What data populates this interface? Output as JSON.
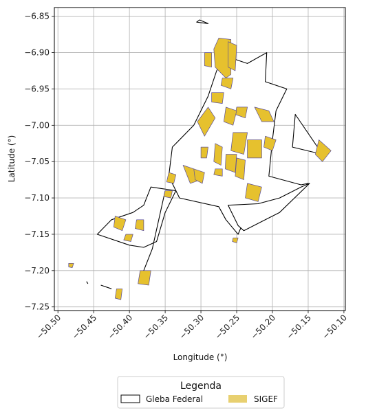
{
  "chart_data": {
    "type": "map",
    "xlabel": "Longitude (°)",
    "ylabel": "Latitude (°)",
    "xlim": [
      -50.505,
      -50.098
    ],
    "ylim": [
      -7.255,
      -6.838
    ],
    "xticks": [
      -50.5,
      -50.45,
      -50.4,
      -50.35,
      -50.3,
      -50.25,
      -50.2,
      -50.15,
      -50.1
    ],
    "xtick_labels": [
      "−50.50",
      "−50.45",
      "−50.40",
      "−50.35",
      "−50.30",
      "−50.25",
      "−50.20",
      "−50.15",
      "−50.10"
    ],
    "yticks": [
      -6.85,
      -6.9,
      -6.95,
      -7.0,
      -7.05,
      -7.1,
      -7.15,
      -7.2,
      -7.25
    ],
    "ytick_labels": [
      "−6.85",
      "−6.90",
      "−6.95",
      "−7.00",
      "−7.05",
      "−7.10",
      "−7.15",
      "−7.20",
      "−7.25"
    ],
    "grid": true,
    "legend": {
      "title": "Legenda",
      "placement": "bottom-center",
      "entries": [
        {
          "label": "Gleba Federal",
          "style": "outline",
          "edge": "#000000",
          "fill": "#ffffff"
        },
        {
          "label": "SIGEF",
          "style": "fill",
          "fill": "#e6c12e"
        }
      ]
    },
    "layers": {
      "gleba_federal": {
        "label": "Gleba Federal",
        "polygons": [
          [
            [
              -50.265,
              -6.905
            ],
            [
              -50.235,
              -6.915
            ],
            [
              -50.208,
              -6.9
            ],
            [
              -50.21,
              -6.94
            ],
            [
              -50.18,
              -6.95
            ],
            [
              -50.195,
              -6.98
            ],
            [
              -50.2,
              -7.02
            ],
            [
              -50.205,
              -7.07
            ],
            [
              -50.16,
              -7.082
            ],
            [
              -50.15,
              -7.08
            ],
            [
              -50.2,
              -7.115
            ],
            [
              -50.235,
              -7.12
            ],
            [
              -50.248,
              -7.15
            ],
            [
              -50.265,
              -7.13
            ],
            [
              -50.275,
              -7.112
            ],
            [
              -50.33,
              -7.1
            ],
            [
              -50.345,
              -7.07
            ],
            [
              -50.34,
              -7.03
            ],
            [
              -50.31,
              -7.0
            ],
            [
              -50.29,
              -6.96
            ],
            [
              -50.278,
              -6.925
            ],
            [
              -50.265,
              -6.905
            ]
          ],
          [
            [
              -50.335,
              -7.09
            ],
            [
              -50.37,
              -7.085
            ],
            [
              -50.38,
              -7.11
            ],
            [
              -50.395,
              -7.12
            ],
            [
              -50.425,
              -7.13
            ],
            [
              -50.445,
              -7.15
            ],
            [
              -50.4,
              -7.165
            ],
            [
              -50.38,
              -7.168
            ],
            [
              -50.362,
              -7.16
            ],
            [
              -50.35,
              -7.12
            ],
            [
              -50.335,
              -7.09
            ]
          ],
          [
            [
              -50.248,
              -7.138
            ],
            [
              -50.262,
              -7.11
            ],
            [
              -50.22,
              -7.108
            ],
            [
              -50.19,
              -7.1
            ],
            [
              -50.16,
              -7.085
            ],
            [
              -50.148,
              -7.08
            ],
            [
              -50.19,
              -7.12
            ],
            [
              -50.24,
              -7.145
            ],
            [
              -50.248,
              -7.138
            ]
          ],
          [
            [
              -50.168,
              -6.985
            ],
            [
              -50.172,
              -7.03
            ],
            [
              -50.13,
              -7.04
            ]
          ],
          [
            [
              -50.306,
              -6.858
            ],
            [
              -50.302,
              -6.855
            ],
            [
              -50.29,
              -6.86
            ],
            [
              -50.306,
              -6.858
            ]
          ]
        ],
        "lines": [
          [
            [
              -50.35,
              -7.09
            ],
            [
              -50.368,
              -7.17
            ],
            [
              -50.38,
              -7.2
            ]
          ],
          [
            [
              -50.44,
              -7.22
            ],
            [
              -50.425,
              -7.225
            ]
          ],
          [
            [
              -50.46,
              -7.215
            ],
            [
              -50.458,
              -7.218
            ]
          ]
        ]
      },
      "sigef": {
        "label": "SIGEF",
        "polygons": [
          [
            [
              -50.275,
              -6.88
            ],
            [
              -50.258,
              -6.882
            ],
            [
              -50.258,
              -6.93
            ],
            [
              -50.265,
              -6.935
            ],
            [
              -50.28,
              -6.92
            ],
            [
              -50.282,
              -6.895
            ],
            [
              -50.275,
              -6.88
            ]
          ],
          [
            [
              -50.262,
              -6.885
            ],
            [
              -50.25,
              -6.89
            ],
            [
              -50.252,
              -6.925
            ],
            [
              -50.262,
              -6.92
            ],
            [
              -50.262,
              -6.885
            ]
          ],
          [
            [
              -50.295,
              -6.9
            ],
            [
              -50.285,
              -6.9
            ],
            [
              -50.285,
              -6.92
            ],
            [
              -50.295,
              -6.918
            ],
            [
              -50.295,
              -6.9
            ]
          ],
          [
            [
              -50.285,
              -6.955
            ],
            [
              -50.268,
              -6.955
            ],
            [
              -50.27,
              -6.97
            ],
            [
              -50.285,
              -6.968
            ],
            [
              -50.285,
              -6.955
            ]
          ],
          [
            [
              -50.27,
              -6.935
            ],
            [
              -50.255,
              -6.935
            ],
            [
              -50.258,
              -6.95
            ],
            [
              -50.272,
              -6.945
            ],
            [
              -50.27,
              -6.935
            ]
          ],
          [
            [
              -50.25,
              -6.975
            ],
            [
              -50.235,
              -6.975
            ],
            [
              -50.238,
              -6.99
            ],
            [
              -50.252,
              -6.985
            ],
            [
              -50.25,
              -6.975
            ]
          ],
          [
            [
              -50.225,
              -6.975
            ],
            [
              -50.205,
              -6.98
            ],
            [
              -50.198,
              -6.995
            ],
            [
              -50.215,
              -6.995
            ],
            [
              -50.225,
              -6.975
            ]
          ],
          [
            [
              -50.29,
              -6.975
            ],
            [
              -50.28,
              -6.99
            ],
            [
              -50.295,
              -7.015
            ],
            [
              -50.305,
              -6.995
            ],
            [
              -50.29,
              -6.975
            ]
          ],
          [
            [
              -50.265,
              -6.975
            ],
            [
              -50.25,
              -6.98
            ],
            [
              -50.255,
              -7.0
            ],
            [
              -50.268,
              -6.995
            ],
            [
              -50.265,
              -6.975
            ]
          ],
          [
            [
              -50.255,
              -7.01
            ],
            [
              -50.235,
              -7.01
            ],
            [
              -50.24,
              -7.04
            ],
            [
              -50.258,
              -7.035
            ],
            [
              -50.255,
              -7.01
            ]
          ],
          [
            [
              -50.235,
              -7.02
            ],
            [
              -50.215,
              -7.02
            ],
            [
              -50.215,
              -7.045
            ],
            [
              -50.235,
              -7.045
            ],
            [
              -50.235,
              -7.02
            ]
          ],
          [
            [
              -50.21,
              -7.015
            ],
            [
              -50.195,
              -7.02
            ],
            [
              -50.2,
              -7.035
            ],
            [
              -50.212,
              -7.03
            ],
            [
              -50.21,
              -7.015
            ]
          ],
          [
            [
              -50.28,
              -7.025
            ],
            [
              -50.27,
              -7.03
            ],
            [
              -50.272,
              -7.055
            ],
            [
              -50.282,
              -7.05
            ],
            [
              -50.28,
              -7.025
            ]
          ],
          [
            [
              -50.265,
              -7.04
            ],
            [
              -50.25,
              -7.04
            ],
            [
              -50.252,
              -7.065
            ],
            [
              -50.266,
              -7.06
            ],
            [
              -50.265,
              -7.04
            ]
          ],
          [
            [
              -50.25,
              -7.045
            ],
            [
              -50.238,
              -7.048
            ],
            [
              -50.24,
              -7.075
            ],
            [
              -50.252,
              -7.07
            ],
            [
              -50.25,
              -7.045
            ]
          ],
          [
            [
              -50.28,
              -7.06
            ],
            [
              -50.27,
              -7.06
            ],
            [
              -50.27,
              -7.07
            ],
            [
              -50.282,
              -7.068
            ],
            [
              -50.28,
              -7.06
            ]
          ],
          [
            [
              -50.3,
              -7.03
            ],
            [
              -50.29,
              -7.03
            ],
            [
              -50.292,
              -7.045
            ],
            [
              -50.3,
              -7.045
            ],
            [
              -50.3,
              -7.03
            ]
          ],
          [
            [
              -50.325,
              -7.055
            ],
            [
              -50.31,
              -7.06
            ],
            [
              -50.3,
              -7.075
            ],
            [
              -50.315,
              -7.08
            ],
            [
              -50.325,
              -7.055
            ]
          ],
          [
            [
              -50.31,
              -7.06
            ],
            [
              -50.295,
              -7.065
            ],
            [
              -50.298,
              -7.08
            ],
            [
              -50.308,
              -7.075
            ],
            [
              -50.31,
              -7.06
            ]
          ],
          [
            [
              -50.345,
              -7.065
            ],
            [
              -50.335,
              -7.068
            ],
            [
              -50.338,
              -7.08
            ],
            [
              -50.348,
              -7.078
            ],
            [
              -50.345,
              -7.065
            ]
          ],
          [
            [
              -50.35,
              -7.09
            ],
            [
              -50.34,
              -7.09
            ],
            [
              -50.342,
              -7.1
            ],
            [
              -50.352,
              -7.098
            ],
            [
              -50.35,
              -7.09
            ]
          ],
          [
            [
              -50.235,
              -7.08
            ],
            [
              -50.215,
              -7.085
            ],
            [
              -50.22,
              -7.105
            ],
            [
              -50.238,
              -7.1
            ],
            [
              -50.235,
              -7.08
            ]
          ],
          [
            [
              -50.39,
              -7.13
            ],
            [
              -50.38,
              -7.13
            ],
            [
              -50.38,
              -7.145
            ],
            [
              -50.392,
              -7.142
            ],
            [
              -50.39,
              -7.13
            ]
          ],
          [
            [
              -50.42,
              -7.125
            ],
            [
              -50.405,
              -7.13
            ],
            [
              -50.41,
              -7.145
            ],
            [
              -50.422,
              -7.14
            ],
            [
              -50.42,
              -7.125
            ]
          ],
          [
            [
              -50.405,
              -7.15
            ],
            [
              -50.395,
              -7.15
            ],
            [
              -50.398,
              -7.16
            ],
            [
              -50.408,
              -7.158
            ],
            [
              -50.405,
              -7.15
            ]
          ],
          [
            [
              -50.385,
              -7.2
            ],
            [
              -50.37,
              -7.2
            ],
            [
              -50.373,
              -7.22
            ],
            [
              -50.388,
              -7.218
            ],
            [
              -50.385,
              -7.2
            ]
          ],
          [
            [
              -50.418,
              -7.225
            ],
            [
              -50.41,
              -7.225
            ],
            [
              -50.412,
              -7.24
            ],
            [
              -50.42,
              -7.238
            ],
            [
              -50.418,
              -7.225
            ]
          ],
          [
            [
              -50.485,
              -7.19
            ],
            [
              -50.478,
              -7.19
            ],
            [
              -50.48,
              -7.196
            ],
            [
              -50.485,
              -7.195
            ],
            [
              -50.485,
              -7.19
            ]
          ],
          [
            [
              -50.135,
              -7.02
            ],
            [
              -50.118,
              -7.035
            ],
            [
              -50.13,
              -7.05
            ],
            [
              -50.14,
              -7.04
            ],
            [
              -50.135,
              -7.02
            ]
          ],
          [
            [
              -50.255,
              -7.155
            ],
            [
              -50.248,
              -7.155
            ],
            [
              -50.25,
              -7.162
            ],
            [
              -50.256,
              -7.16
            ],
            [
              -50.255,
              -7.155
            ]
          ]
        ]
      }
    }
  }
}
